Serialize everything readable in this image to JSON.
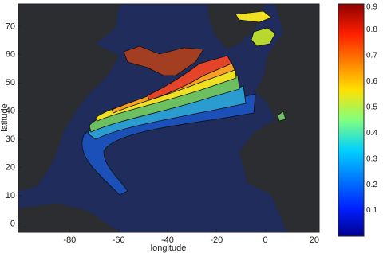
{
  "chart_data": {
    "type": "contour",
    "x_label": "longitude",
    "y_label": "latitude",
    "xlim": [
      -101,
      22
    ],
    "ylim": [
      -3,
      78
    ],
    "xticks": [
      -80,
      -60,
      -40,
      -20,
      0,
      20
    ],
    "yticks": [
      0,
      10,
      20,
      30,
      40,
      50,
      60,
      70
    ],
    "colorbar": {
      "clim": [
        0,
        0.9
      ],
      "ticks": [
        0.1,
        0.2,
        0.3,
        0.4,
        0.5,
        0.6,
        0.7,
        0.8,
        0.9
      ]
    }
  }
}
